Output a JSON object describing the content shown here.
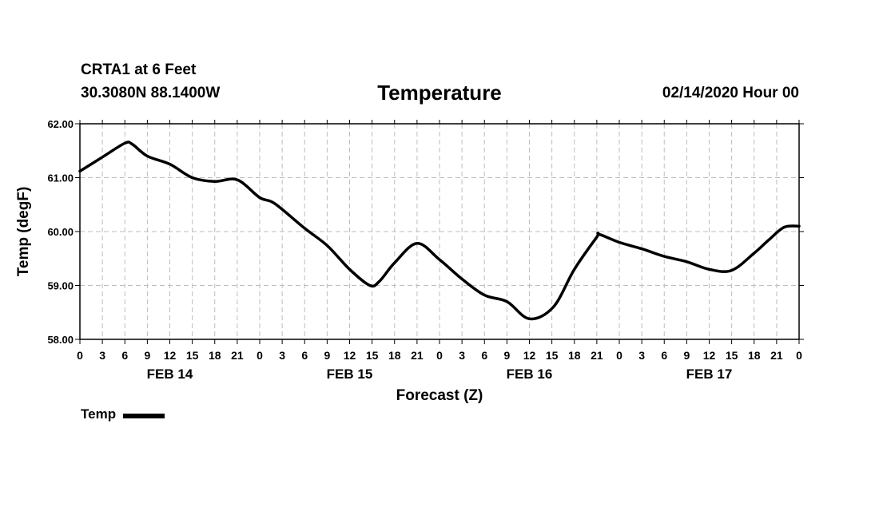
{
  "header": {
    "station": "CRTA1 at 6 Feet",
    "coords": "30.3080N 88.1400W",
    "title": "Temperature",
    "run_time": "02/14/2020 Hour 00"
  },
  "legend": {
    "label": "Temp"
  },
  "chart_data": {
    "type": "line",
    "title": "Temperature",
    "xlabel": "Forecast (Z)",
    "ylabel": "Temp (degF)",
    "ylim": [
      58,
      62
    ],
    "xlim": [
      0,
      96
    ],
    "yticks": [
      "58.00",
      "59.00",
      "60.00",
      "61.00",
      "62.00"
    ],
    "x_tick_labels": [
      "0",
      "3",
      "6",
      "9",
      "12",
      "15",
      "18",
      "21",
      "0",
      "3",
      "6",
      "9",
      "12",
      "15",
      "18",
      "21",
      "0",
      "3",
      "6",
      "9",
      "12",
      "15",
      "18",
      "21",
      "0",
      "3",
      "6",
      "9",
      "12",
      "15",
      "18",
      "21",
      "0"
    ],
    "day_labels": [
      {
        "label": "FEB 14",
        "x": 12
      },
      {
        "label": "FEB 15",
        "x": 36
      },
      {
        "label": "FEB 16",
        "x": 60
      },
      {
        "label": "FEB 17",
        "x": 84
      }
    ],
    "grid": true,
    "series": [
      {
        "name": "Temp",
        "x": [
          0,
          3,
          6,
          7,
          9,
          12,
          15,
          18,
          21,
          24,
          26,
          30,
          33,
          36,
          38.7,
          40,
          42,
          45,
          48,
          51,
          54,
          57,
          60,
          63.2,
          66,
          69,
          69.3,
          72,
          75,
          78,
          81,
          84,
          87,
          90,
          92,
          94,
          96
        ],
        "y": [
          61.12,
          61.38,
          61.64,
          61.62,
          61.4,
          61.25,
          61.0,
          60.93,
          60.96,
          60.63,
          60.52,
          60.06,
          59.74,
          59.3,
          59.0,
          59.08,
          59.42,
          59.78,
          59.48,
          59.12,
          58.82,
          58.7,
          58.38,
          58.6,
          59.3,
          59.9,
          59.95,
          59.8,
          59.68,
          59.54,
          59.44,
          59.3,
          59.28,
          59.6,
          59.85,
          60.08,
          60.1
        ]
      }
    ]
  }
}
